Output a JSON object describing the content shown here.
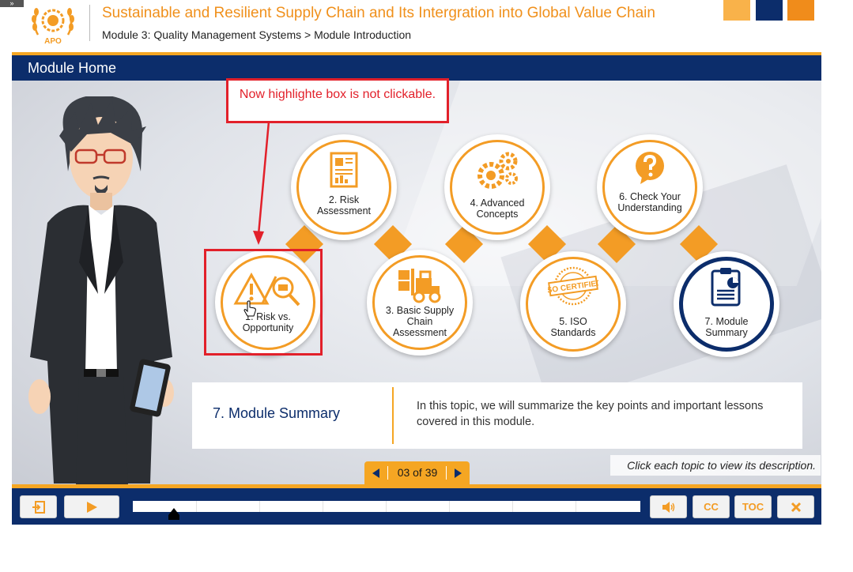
{
  "header": {
    "course_title": "Sustainable and Resilient Supply Chain and Its Intergration into Global Value Chain",
    "breadcrumb": "Module 3: Quality Management Systems > Module Introduction",
    "logo_text": "APO",
    "accent_colors": [
      "#f9b24a",
      "#0c2d6b",
      "#f08c1b"
    ]
  },
  "module_bar": {
    "title": "Module Home"
  },
  "annotation": {
    "note": "Now highlighte box is not clickable."
  },
  "topics": [
    {
      "label_line1": "1. Risk vs.",
      "label_line2": "Opportunity",
      "icon": "warning-magnifier-icon"
    },
    {
      "label_line1": "2. Risk",
      "label_line2": "Assessment",
      "icon": "report-chart-icon"
    },
    {
      "label_line1": "3. Basic Supply",
      "label_line2": "Chain",
      "label_line3": "Assessment",
      "icon": "forklift-icon"
    },
    {
      "label_line1": "4. Advanced",
      "label_line2": "Concepts",
      "icon": "gears-icon"
    },
    {
      "label_line1": "5. ISO",
      "label_line2": "Standards",
      "icon": "iso-certified-stamp-icon",
      "stamp_text": "ISO CERTIFIED"
    },
    {
      "label_line1": "6. Check Your",
      "label_line2": "Understanding",
      "icon": "question-icon"
    },
    {
      "label_line1": "7. Module",
      "label_line2": "Summary",
      "icon": "clipboard-chart-icon"
    }
  ],
  "description": {
    "title": "7. Module Summary",
    "text": "In this topic, we will summarize the key points and important lessons covered in this module."
  },
  "hint": "Click each topic to view its description.",
  "pager": {
    "text": "03 of 39"
  },
  "controls": {
    "exit_icon": "exit-icon",
    "play_icon": "play-icon",
    "volume_icon": "volume-icon",
    "cc_label": "CC",
    "toc_label": "TOC",
    "close_icon": "close-icon"
  },
  "progress": {
    "played_fraction": 0.07
  },
  "colors": {
    "orange": "#f39c25",
    "navy": "#0c2d6b",
    "red": "#e2202a"
  }
}
